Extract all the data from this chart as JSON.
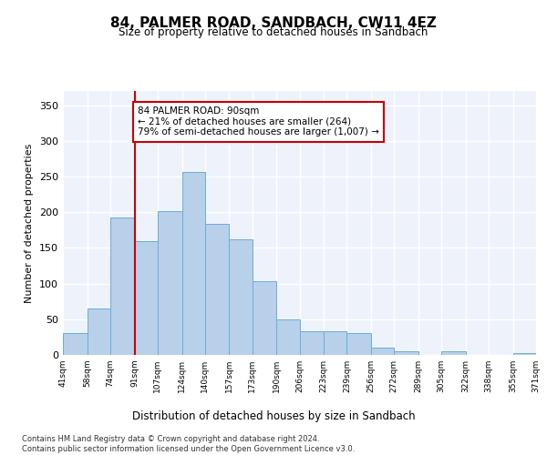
{
  "title": "84, PALMER ROAD, SANDBACH, CW11 4EZ",
  "subtitle": "Size of property relative to detached houses in Sandbach",
  "xlabel": "Distribution of detached houses by size in Sandbach",
  "ylabel": "Number of detached properties",
  "bar_edges": [
    41,
    58,
    74,
    91,
    107,
    124,
    140,
    157,
    173,
    190,
    206,
    223,
    239,
    256,
    272,
    289,
    305,
    322,
    338,
    355,
    371
  ],
  "bar_heights": [
    30,
    65,
    193,
    160,
    202,
    257,
    184,
    162,
    103,
    50,
    33,
    33,
    30,
    10,
    5,
    0,
    5,
    0,
    0,
    3
  ],
  "bar_color": "#b8d0ea",
  "bar_edge_color": "#6aaed6",
  "property_line_x": 91,
  "property_line_color": "#cc0000",
  "annotation_text": "84 PALMER ROAD: 90sqm\n← 21% of detached houses are smaller (264)\n79% of semi-detached houses are larger (1,007) →",
  "annotation_box_edgecolor": "#cc0000",
  "ylim": [
    0,
    370
  ],
  "yticks": [
    0,
    50,
    100,
    150,
    200,
    250,
    300,
    350
  ],
  "background_color": "#eef2fb",
  "grid_color": "#ffffff",
  "footer_text": "Contains HM Land Registry data © Crown copyright and database right 2024.\nContains public sector information licensed under the Open Government Licence v3.0.",
  "tick_labels": [
    "41sqm",
    "58sqm",
    "74sqm",
    "91sqm",
    "107sqm",
    "124sqm",
    "140sqm",
    "157sqm",
    "173sqm",
    "190sqm",
    "206sqm",
    "223sqm",
    "239sqm",
    "256sqm",
    "272sqm",
    "289sqm",
    "305sqm",
    "322sqm",
    "338sqm",
    "355sqm",
    "371sqm"
  ]
}
